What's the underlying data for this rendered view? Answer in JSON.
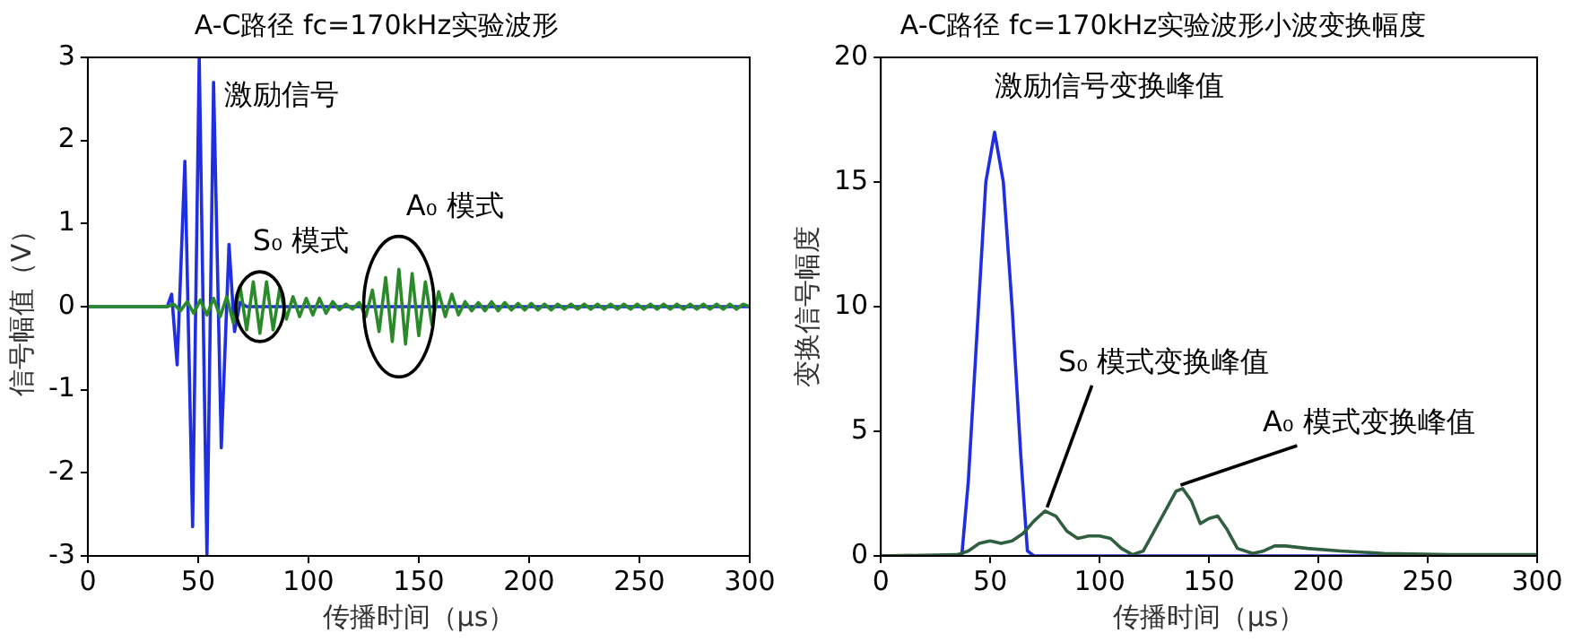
{
  "chart_data": [
    {
      "type": "line",
      "title": "A-C路径 fc=170kHz实验波形",
      "xlabel": "传播时间（μs）",
      "ylabel": "信号幅值（V）",
      "xlim": [
        0,
        300
      ],
      "xticks": [
        0,
        50,
        100,
        150,
        200,
        250,
        300
      ],
      "ylim": [
        -3,
        3
      ],
      "yticks": [
        -3,
        -2,
        -1,
        0,
        1,
        2,
        3
      ],
      "grid": false,
      "legend": false,
      "marker": "none",
      "line_style": "solid",
      "annotations": [
        {
          "text": "激励信号",
          "x": 57,
          "y": 2.7
        },
        {
          "text": "S₀ 模式",
          "x": 78,
          "y": 0
        },
        {
          "text": "A₀ 模式",
          "x": 141,
          "y": 0
        }
      ],
      "series": [
        {
          "color": "#2a8a2a",
          "x": [
            0,
            36,
            39,
            42,
            45,
            48,
            51,
            54,
            57,
            60,
            63,
            66,
            69,
            72,
            75,
            78,
            81,
            84,
            87,
            90,
            93,
            96,
            99,
            102,
            105,
            108,
            111,
            114,
            117,
            120,
            123,
            126,
            129,
            132,
            135,
            138,
            141,
            144,
            147,
            150,
            153,
            156,
            159,
            162,
            165,
            168,
            171,
            174,
            177,
            180,
            183,
            186,
            189,
            192,
            195,
            198,
            201,
            204,
            207,
            210,
            213,
            216,
            219,
            222,
            225,
            228,
            231,
            234,
            237,
            240,
            243,
            246,
            249,
            252,
            255,
            258,
            261,
            264,
            267,
            270,
            273,
            276,
            279,
            282,
            285,
            288,
            291,
            294,
            297,
            300
          ],
          "values": [
            0,
            0,
            0.03,
            -0.05,
            0.06,
            -0.08,
            0.08,
            -0.1,
            0.1,
            -0.12,
            0.12,
            -0.2,
            0.25,
            -0.28,
            0.3,
            -0.32,
            0.3,
            -0.28,
            0.22,
            -0.15,
            0.12,
            -0.12,
            0.1,
            -0.1,
            0.1,
            -0.08,
            0.06,
            -0.04,
            0.03,
            -0.03,
            0.05,
            -0.12,
            0.2,
            -0.3,
            0.35,
            -0.42,
            0.45,
            -0.45,
            0.4,
            -0.35,
            0.3,
            -0.22,
            0.18,
            -0.12,
            0.15,
            -0.1,
            0.06,
            -0.05,
            0.05,
            -0.05,
            0.06,
            -0.05,
            0.05,
            -0.04,
            0.04,
            -0.04,
            0.04,
            -0.04,
            0.03,
            -0.04,
            0.03,
            -0.03,
            0.03,
            -0.03,
            0.03,
            -0.03,
            0.03,
            -0.03,
            0.03,
            -0.03,
            0.03,
            -0.03,
            0.03,
            -0.03,
            0.03,
            -0.03,
            0.03,
            -0.03,
            0.03,
            -0.03,
            0.03,
            -0.03,
            0.03,
            -0.03,
            0.03,
            -0.03,
            0.03,
            -0.03,
            0.03,
            0
          ]
        },
        {
          "color": "#1f2fe0",
          "x": [
            0,
            36,
            38,
            40.5,
            44,
            47.5,
            50.5,
            54,
            57,
            60.5,
            64,
            66.5,
            69,
            72,
            300
          ],
          "values": [
            0,
            0,
            0.15,
            -0.7,
            1.75,
            -2.65,
            3,
            -3,
            2.7,
            -1.7,
            0.75,
            -0.3,
            0.05,
            0,
            0
          ]
        }
      ]
    },
    {
      "type": "line",
      "title": "A-C路径 fc=170kHz实验波形小波变换幅度",
      "xlabel": "传播时间（μs）",
      "ylabel": "变换信号幅度",
      "xlim": [
        0,
        300
      ],
      "xticks": [
        0,
        50,
        100,
        150,
        200,
        250,
        300
      ],
      "ylim": [
        0,
        20
      ],
      "yticks": [
        0,
        5,
        10,
        15,
        20
      ],
      "grid": false,
      "legend": false,
      "marker": "none",
      "line_style": "solid",
      "annotations": [
        {
          "text": "激励信号变换峰值",
          "x": 52,
          "y": 17
        },
        {
          "text": "S₀ 模式变换峰值",
          "x": 76,
          "y": 1.8
        },
        {
          "text": "A₀ 模式变换峰值",
          "x": 137,
          "y": 2.7
        }
      ],
      "series": [
        {
          "color": "#2f5f3f",
          "x": [
            0,
            35,
            40,
            45,
            50,
            55,
            60,
            65,
            70,
            75,
            80,
            85,
            90,
            95,
            100,
            105,
            110,
            115,
            120,
            125,
            130,
            135,
            138,
            142,
            146,
            150,
            154,
            158,
            163,
            170,
            175,
            180,
            185,
            195,
            210,
            230,
            260,
            300
          ],
          "values": [
            0,
            0.05,
            0.2,
            0.5,
            0.6,
            0.5,
            0.6,
            0.9,
            1.4,
            1.8,
            1.6,
            1.0,
            0.7,
            0.8,
            0.8,
            0.7,
            0.3,
            0.05,
            0.2,
            1.0,
            1.8,
            2.6,
            2.7,
            2.2,
            1.3,
            1.5,
            1.6,
            1.1,
            0.3,
            0.1,
            0.2,
            0.4,
            0.4,
            0.3,
            0.2,
            0.1,
            0.05,
            0.05
          ]
        },
        {
          "color": "#1f2fe0",
          "x": [
            0,
            37,
            40,
            44,
            48,
            52,
            56,
            60,
            64,
            67,
            70,
            300
          ],
          "values": [
            0,
            0,
            3,
            9,
            15,
            17,
            15,
            10,
            4,
            0.2,
            0,
            0
          ]
        }
      ]
    }
  ]
}
